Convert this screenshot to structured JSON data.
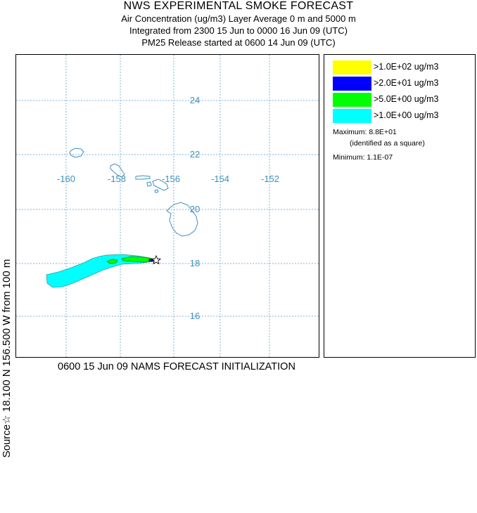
{
  "header": {
    "title": "NWS EXPERIMENTAL SMOKE FORECAST",
    "line1": "Air Concentration (ug/m3) Layer Average    0 m and  5000 m",
    "line2": "Integrated from 2300 15 Jun to 0000 16 Jun 09 (UTC)",
    "line3": "PM25 Release started at 0600 14 Jun 09 (UTC)"
  },
  "map": {
    "lon_labels": [
      "-160",
      "-158",
      "-156",
      "-154",
      "-152"
    ],
    "lat_labels": [
      "24",
      "22",
      "20",
      "18",
      "16"
    ],
    "grid_color": "#7fb3d9",
    "label_color": "#3f8fbf",
    "coast_color": "#3f8fbf",
    "source_marker": "star"
  },
  "legend": {
    "items": [
      {
        "label": ">1.0E+02 ug/m3",
        "color": "#ffff00"
      },
      {
        "label": ">2.0E+01 ug/m3",
        "color": "#0000ff"
      },
      {
        "label": ">5.0E+00 ug/m3",
        "color": "#00ff00"
      },
      {
        "label": ">1.0E+00 ug/m3",
        "color": "#00ffff"
      }
    ],
    "maximum": "Maximum: 8.8E+01",
    "maximum_note": "(identified as a square)",
    "minimum": "Minimum: 1.1E-07"
  },
  "left_label": "Source☆ 18.100  N 156.500  W     from   100 m",
  "bottom_label": "0600 15 Jun 09 NAMS FORECAST INITIALIZATION"
}
